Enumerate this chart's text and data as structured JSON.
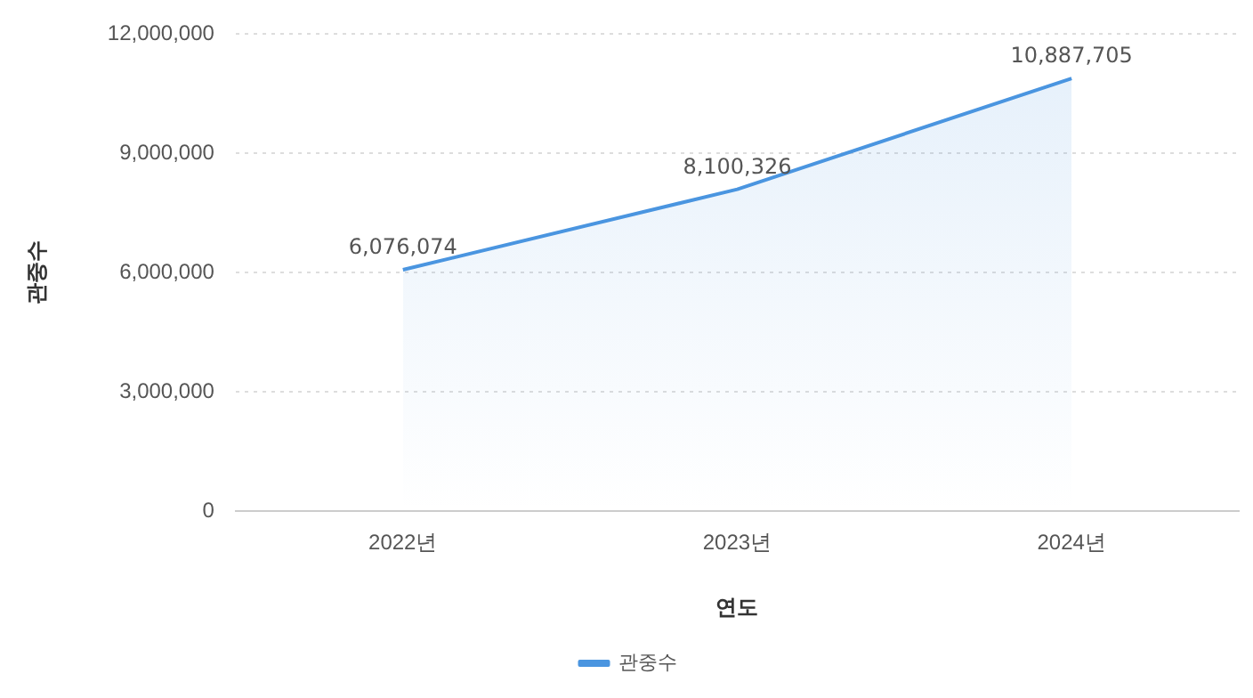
{
  "chart_data": {
    "type": "area",
    "categories": [
      "2022년",
      "2023년",
      "2024년"
    ],
    "series": [
      {
        "name": "관중수",
        "color": "#4a95e0",
        "values": [
          6076074,
          8100326,
          10887705
        ],
        "value_labels": [
          "6,076,074",
          "8,100,326",
          "10,887,705"
        ]
      }
    ],
    "xlabel": "연도",
    "ylabel": "관중수",
    "ylim": [
      0,
      12000000
    ],
    "yticks": [
      0,
      {
        "value": 3000000,
        "label": "3,000,000"
      },
      {
        "value": 6000000,
        "label": "6,000,000"
      },
      {
        "value": 9000000,
        "label": "9,000,000"
      },
      {
        "value": 12000000,
        "label": "12,000,000"
      }
    ],
    "grid": "y",
    "legend": "bottom"
  }
}
